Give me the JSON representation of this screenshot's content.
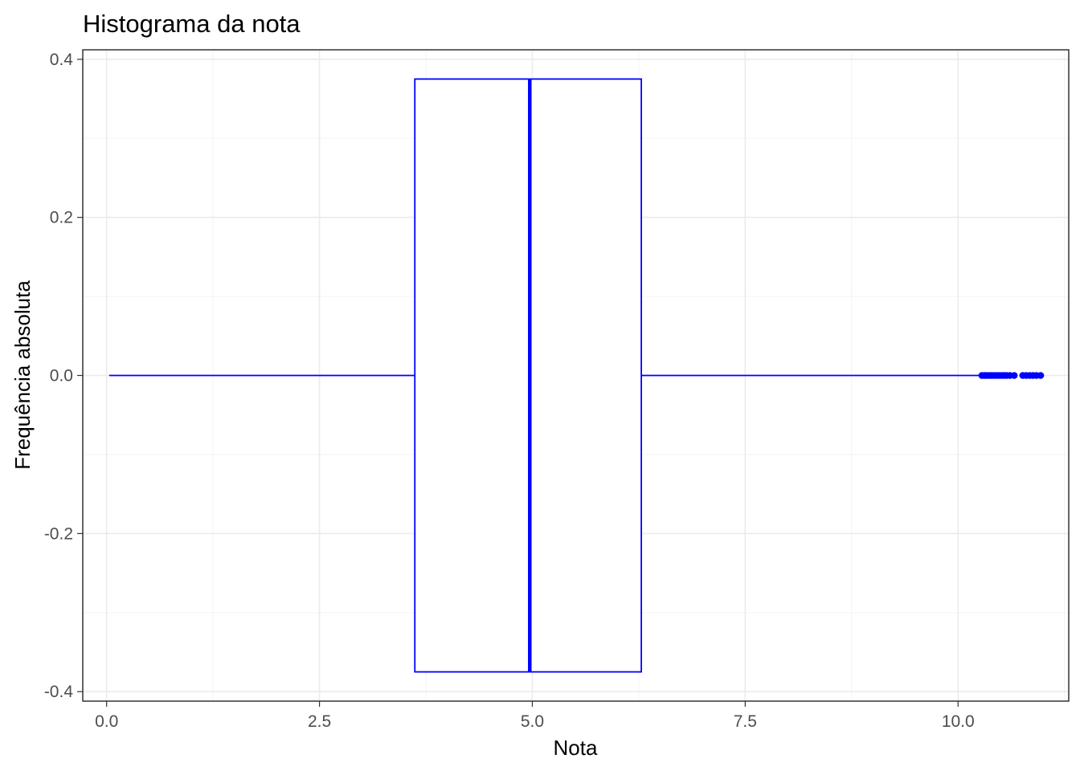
{
  "chart_data": {
    "type": "boxplot",
    "orientation": "horizontal",
    "title": "Histograma da nota",
    "xlabel": "Nota",
    "ylabel": "Frequência absoluta",
    "xlim": [
      -0.28,
      11.3
    ],
    "ylim": [
      -0.412,
      0.412
    ],
    "x_ticks": [
      0,
      2.5,
      5,
      7.5,
      10
    ],
    "x_tick_labels": [
      "0.0",
      "2.5",
      "5.0",
      "7.5",
      "10.0"
    ],
    "y_ticks": [
      -0.4,
      -0.2,
      0,
      0.2,
      0.4
    ],
    "y_tick_labels": [
      "-0.4",
      "-0.2",
      "0.0",
      "0.2",
      "0.4"
    ],
    "grid": true,
    "color": "#0000ff",
    "box": {
      "whisker_low": 0.03,
      "q1": 3.62,
      "median": 4.97,
      "q3": 6.28,
      "whisker_high": 10.25,
      "half_height": 0.375
    },
    "outliers": [
      10.28,
      10.31,
      10.33,
      10.36,
      10.39,
      10.42,
      10.45,
      10.48,
      10.51,
      10.54,
      10.57,
      10.61,
      10.66,
      10.76,
      10.8,
      10.84,
      10.88,
      10.92,
      10.97
    ]
  }
}
